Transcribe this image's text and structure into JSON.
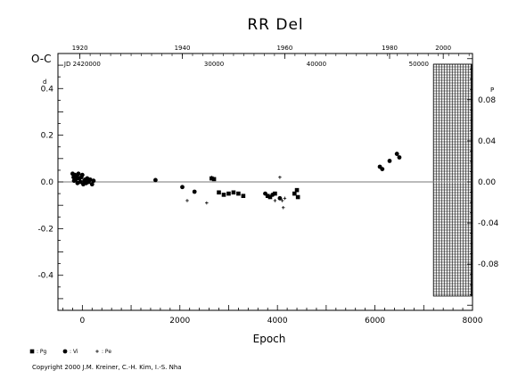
{
  "chart_data": {
    "type": "scatter",
    "title": "RR Del",
    "xlabel": "Epoch",
    "ylabel": "O-C",
    "left_axis_label_suffix": "d",
    "right_axis_label_suffix": "P",
    "xlim": [
      -500,
      8000
    ],
    "ylim": [
      -0.55,
      0.55
    ],
    "right_ylim": [
      -0.125,
      0.125
    ],
    "x_ticks": [
      {
        "value": 0,
        "label": "0"
      },
      {
        "value": 2000,
        "label": "2000"
      },
      {
        "value": 4000,
        "label": "4000"
      },
      {
        "value": 6000,
        "label": "6000"
      },
      {
        "value": 8000,
        "label": "8000"
      }
    ],
    "y_ticks_left": [
      {
        "value": 0.4,
        "label": "0.4"
      },
      {
        "value": 0.2,
        "label": "0.2"
      },
      {
        "value": 0.0,
        "label": "0.0"
      },
      {
        "value": -0.2,
        "label": "-0.2"
      },
      {
        "value": -0.4,
        "label": "-0.4"
      }
    ],
    "y_ticks_right": [
      {
        "value": 0.08,
        "label": "0.08"
      },
      {
        "value": 0.04,
        "label": "0.04"
      },
      {
        "value": 0.0,
        "label": "0.00"
      },
      {
        "value": -0.04,
        "label": "-0.04"
      },
      {
        "value": -0.08,
        "label": "-0.08"
      }
    ],
    "top_year_ticks": [
      {
        "x": -50,
        "label": "1920"
      },
      {
        "x": 2050,
        "label": "1940"
      },
      {
        "x": 4150,
        "label": "1960"
      },
      {
        "x": 6300,
        "label": "1980"
      },
      {
        "x": 7400,
        "label": "2000"
      }
    ],
    "jd_labels": [
      {
        "x": 0,
        "label": "JD 2420000"
      },
      {
        "x": 2700,
        "label": "30000"
      },
      {
        "x": 4800,
        "label": "40000"
      },
      {
        "x": 6900,
        "label": "50000"
      }
    ],
    "future_region": {
      "x_start": 7200,
      "x_end": 8000
    },
    "zero_line": 0.0,
    "series": [
      {
        "name": ": Pg",
        "marker": "square",
        "points": [
          [
            2650,
            0.015
          ],
          [
            2700,
            0.012
          ],
          [
            2800,
            -0.045
          ],
          [
            2900,
            -0.055
          ],
          [
            3000,
            -0.05
          ],
          [
            3100,
            -0.045
          ],
          [
            3200,
            -0.05
          ],
          [
            3300,
            -0.06
          ],
          [
            3800,
            -0.06
          ],
          [
            3850,
            -0.065
          ],
          [
            3950,
            -0.05
          ],
          [
            4350,
            -0.05
          ],
          [
            4400,
            -0.035
          ],
          [
            4420,
            -0.065
          ]
        ]
      },
      {
        "name": ": Vi",
        "marker": "circle",
        "points": [
          [
            -200,
            0.035
          ],
          [
            -180,
            0.02
          ],
          [
            -170,
            0.005
          ],
          [
            -150,
            0.03
          ],
          [
            -130,
            0.01
          ],
          [
            -110,
            0.025
          ],
          [
            -100,
            -0.005
          ],
          [
            -80,
            0.035
          ],
          [
            -60,
            0.015
          ],
          [
            -40,
            0.0
          ],
          [
            -20,
            0.02
          ],
          [
            0,
            0.03
          ],
          [
            20,
            -0.01
          ],
          [
            40,
            0.005
          ],
          [
            60,
            0.01
          ],
          [
            80,
            -0.005
          ],
          [
            100,
            0.015
          ],
          [
            130,
            0.0
          ],
          [
            160,
            0.01
          ],
          [
            200,
            -0.01
          ],
          [
            230,
            0.005
          ],
          [
            1500,
            0.008
          ],
          [
            2050,
            -0.022
          ],
          [
            2300,
            -0.042
          ],
          [
            3750,
            -0.05
          ],
          [
            3900,
            -0.055
          ],
          [
            4050,
            -0.07
          ],
          [
            6100,
            0.065
          ],
          [
            6150,
            0.055
          ],
          [
            6300,
            0.09
          ],
          [
            6450,
            0.12
          ],
          [
            6500,
            0.105
          ]
        ]
      },
      {
        "name": ": Pe",
        "marker": "plus",
        "points": [
          [
            2150,
            -0.08
          ],
          [
            2550,
            -0.09
          ],
          [
            2650,
            0.02
          ],
          [
            3950,
            -0.08
          ],
          [
            4050,
            0.02
          ],
          [
            4100,
            -0.08
          ],
          [
            4120,
            -0.11
          ],
          [
            4150,
            -0.07
          ]
        ]
      }
    ]
  },
  "copyright": "Copyright 2000 J.M. Kreiner, C.-H. Kim, I.-S. Nha"
}
